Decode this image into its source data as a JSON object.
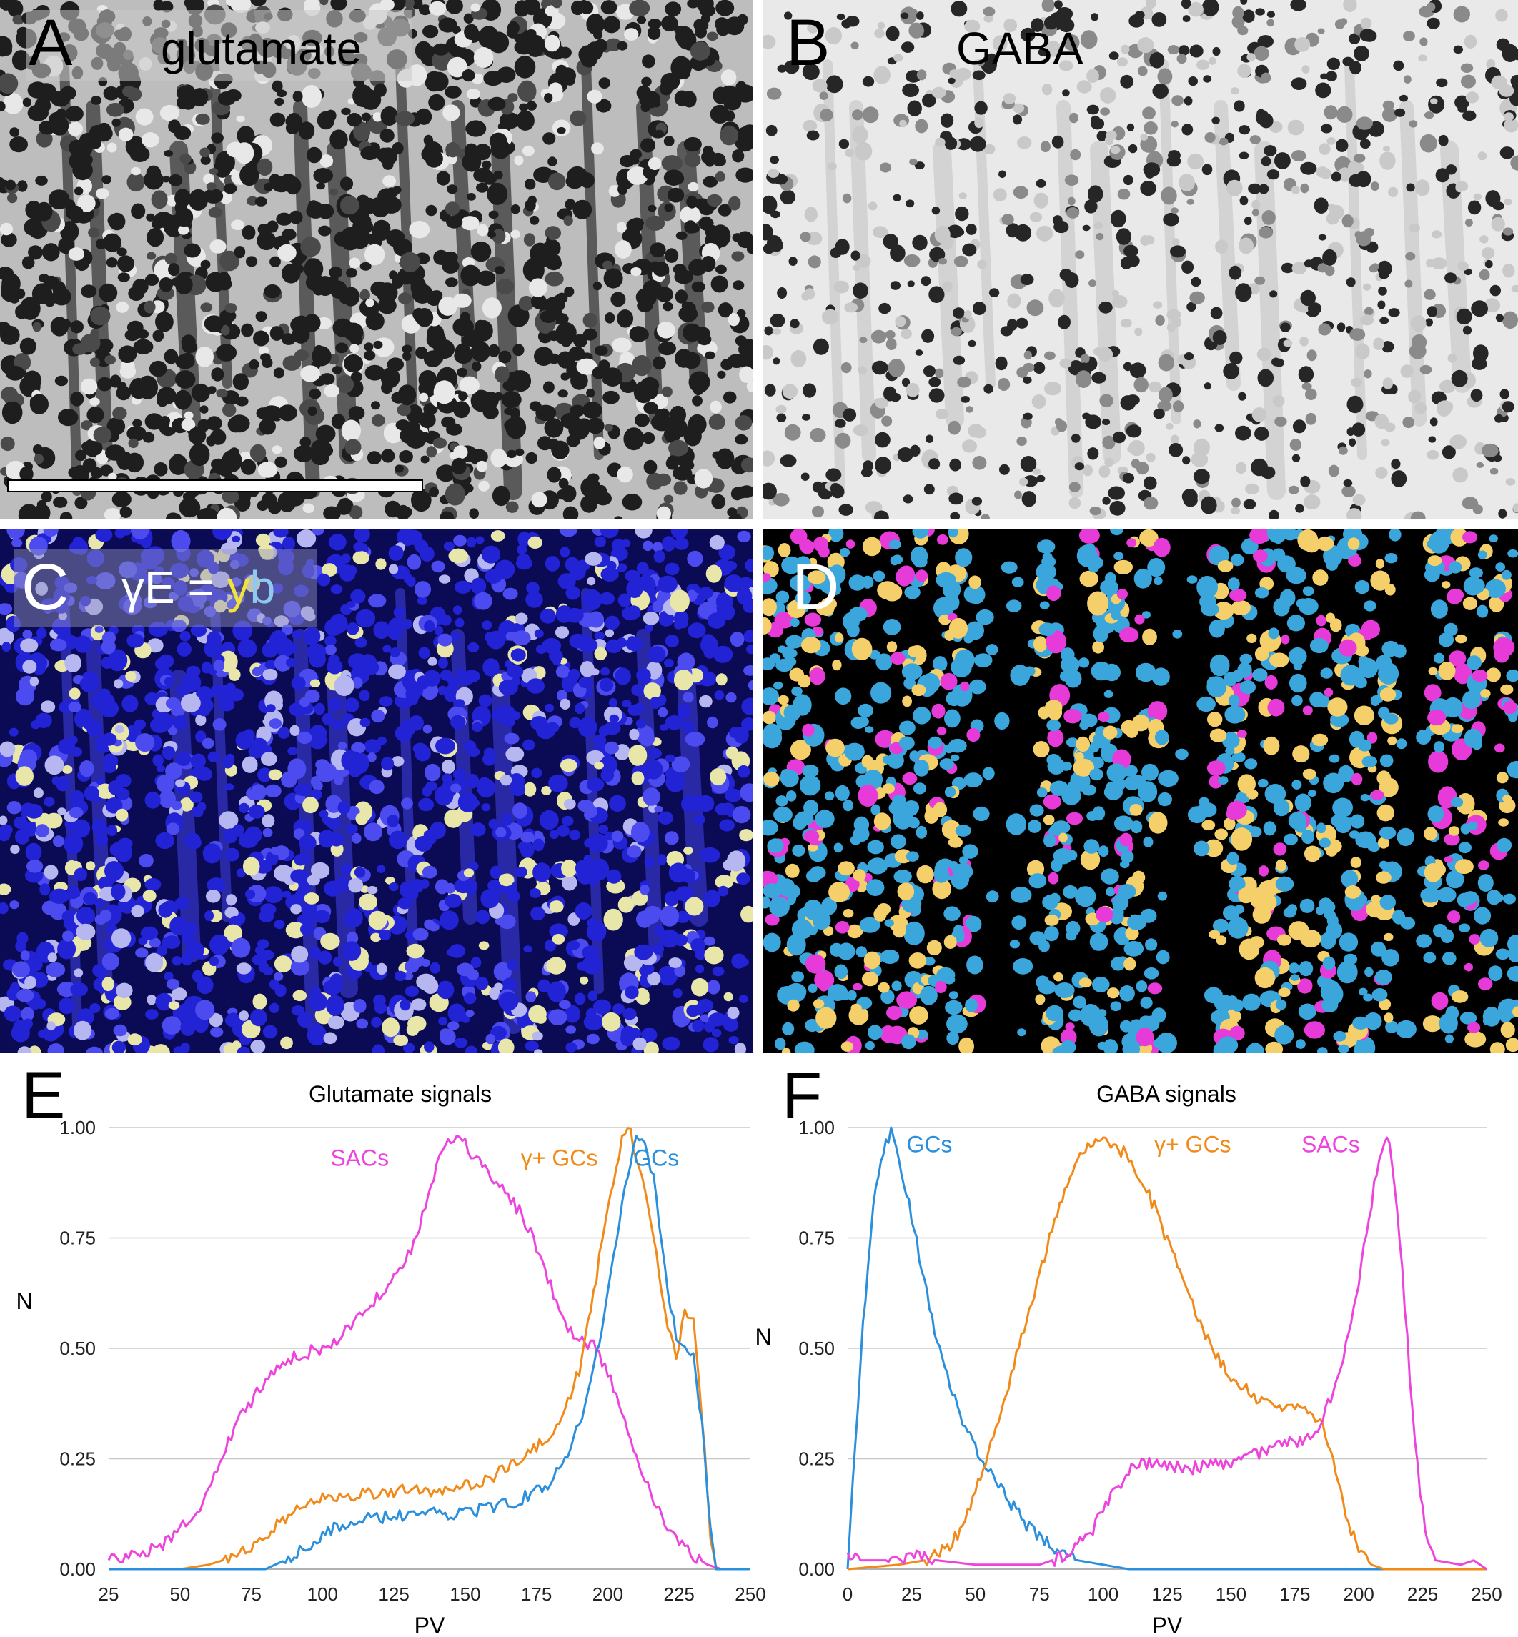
{
  "panels": {
    "a": {
      "letter": "A",
      "title": "glutamate"
    },
    "b": {
      "letter": "B",
      "title": "GABA"
    },
    "c": {
      "letter": "C",
      "title_prefix": "γE = ",
      "title_y": "y",
      "title_b": "b"
    },
    "d": {
      "letter": "D"
    }
  },
  "colors": {
    "sacs": "#ee44dd",
    "gamma_gcs": "#f28a1a",
    "gcs": "#2a90dd",
    "map_gc": "#3aa6dc",
    "map_gamma": "#f5cf6a",
    "map_sac": "#e63bd8",
    "confocal_blue": "#2a2ad8",
    "grid": "#c8c8c8"
  },
  "chart_data": [
    {
      "type": "line",
      "letter": "E",
      "title": "Glutamate signals",
      "xlabel": "PV",
      "ylabel": "N",
      "xlim": [
        25,
        250
      ],
      "ylim": [
        0,
        1
      ],
      "x_ticks": [
        "25",
        "50",
        "75",
        "100",
        "125",
        "150",
        "175",
        "200",
        "225",
        "250"
      ],
      "y_ticks": [
        "0.00",
        "0.25",
        "0.50",
        "0.75",
        "1.00"
      ],
      "grid": "horizontal",
      "series": [
        {
          "name": "SACs",
          "color": "#ee44dd",
          "points": [
            [
              25,
              0.02
            ],
            [
              35,
              0.03
            ],
            [
              45,
              0.06
            ],
            [
              55,
              0.12
            ],
            [
              60,
              0.18
            ],
            [
              65,
              0.26
            ],
            [
              70,
              0.33
            ],
            [
              75,
              0.38
            ],
            [
              80,
              0.43
            ],
            [
              85,
              0.46
            ],
            [
              90,
              0.48
            ],
            [
              95,
              0.49
            ],
            [
              100,
              0.5
            ],
            [
              105,
              0.52
            ],
            [
              110,
              0.55
            ],
            [
              115,
              0.58
            ],
            [
              120,
              0.62
            ],
            [
              125,
              0.66
            ],
            [
              130,
              0.71
            ],
            [
              135,
              0.8
            ],
            [
              140,
              0.92
            ],
            [
              145,
              0.97
            ],
            [
              150,
              0.96
            ],
            [
              155,
              0.92
            ],
            [
              160,
              0.88
            ],
            [
              165,
              0.85
            ],
            [
              170,
              0.8
            ],
            [
              175,
              0.73
            ],
            [
              180,
              0.64
            ],
            [
              185,
              0.55
            ],
            [
              190,
              0.52
            ],
            [
              195,
              0.51
            ],
            [
              200,
              0.45
            ],
            [
              205,
              0.35
            ],
            [
              210,
              0.25
            ],
            [
              215,
              0.17
            ],
            [
              220,
              0.11
            ],
            [
              225,
              0.06
            ],
            [
              230,
              0.03
            ],
            [
              235,
              0.01
            ],
            [
              240,
              0.0
            ],
            [
              250,
              0.0
            ]
          ]
        },
        {
          "name": "γ+ GCs",
          "color": "#f28a1a",
          "points": [
            [
              25,
              0.0
            ],
            [
              50,
              0.0
            ],
            [
              60,
              0.01
            ],
            [
              70,
              0.03
            ],
            [
              80,
              0.08
            ],
            [
              90,
              0.13
            ],
            [
              100,
              0.16
            ],
            [
              110,
              0.17
            ],
            [
              120,
              0.17
            ],
            [
              130,
              0.18
            ],
            [
              140,
              0.18
            ],
            [
              150,
              0.19
            ],
            [
              160,
              0.21
            ],
            [
              170,
              0.25
            ],
            [
              180,
              0.3
            ],
            [
              185,
              0.36
            ],
            [
              190,
              0.45
            ],
            [
              195,
              0.62
            ],
            [
              200,
              0.82
            ],
            [
              205,
              0.98
            ],
            [
              208,
              0.99
            ],
            [
              212,
              0.88
            ],
            [
              217,
              0.72
            ],
            [
              221,
              0.55
            ],
            [
              224,
              0.48
            ],
            [
              227,
              0.58
            ],
            [
              230,
              0.58
            ],
            [
              233,
              0.35
            ],
            [
              236,
              0.08
            ],
            [
              238,
              0.0
            ],
            [
              250,
              0.0
            ]
          ]
        },
        {
          "name": "GCs",
          "color": "#2a90dd",
          "points": [
            [
              25,
              0.0
            ],
            [
              80,
              0.0
            ],
            [
              90,
              0.03
            ],
            [
              100,
              0.08
            ],
            [
              110,
              0.11
            ],
            [
              120,
              0.115
            ],
            [
              130,
              0.12
            ],
            [
              140,
              0.125
            ],
            [
              150,
              0.13
            ],
            [
              160,
              0.14
            ],
            [
              170,
              0.16
            ],
            [
              180,
              0.2
            ],
            [
              185,
              0.25
            ],
            [
              190,
              0.33
            ],
            [
              195,
              0.45
            ],
            [
              200,
              0.62
            ],
            [
              205,
              0.82
            ],
            [
              210,
              0.98
            ],
            [
              213,
              0.97
            ],
            [
              216,
              0.88
            ],
            [
              220,
              0.68
            ],
            [
              224,
              0.52
            ],
            [
              227,
              0.51
            ],
            [
              230,
              0.48
            ],
            [
              233,
              0.33
            ],
            [
              236,
              0.08
            ],
            [
              238,
              0.0
            ],
            [
              250,
              0.0
            ]
          ]
        }
      ],
      "series_labels": [
        "SACs",
        "γ+ GCs",
        "GCs"
      ]
    },
    {
      "type": "line",
      "letter": "F",
      "title": "GABA signals",
      "xlabel": "PV",
      "ylabel": "N",
      "xlim": [
        0,
        250
      ],
      "ylim": [
        0,
        1
      ],
      "x_ticks": [
        "0",
        "25",
        "50",
        "75",
        "100",
        "125",
        "150",
        "175",
        "200",
        "225",
        "250"
      ],
      "y_ticks": [
        "0.00",
        "0.25",
        "0.50",
        "0.75",
        "1.00"
      ],
      "grid": "horizontal",
      "series": [
        {
          "name": "GCs",
          "color": "#2a90dd",
          "points": [
            [
              0,
              0.0
            ],
            [
              2,
              0.2
            ],
            [
              6,
              0.55
            ],
            [
              10,
              0.82
            ],
            [
              14,
              0.95
            ],
            [
              17,
              0.99
            ],
            [
              20,
              0.92
            ],
            [
              25,
              0.8
            ],
            [
              30,
              0.65
            ],
            [
              35,
              0.52
            ],
            [
              40,
              0.42
            ],
            [
              45,
              0.34
            ],
            [
              50,
              0.27
            ],
            [
              60,
              0.18
            ],
            [
              70,
              0.1
            ],
            [
              80,
              0.05
            ],
            [
              90,
              0.02
            ],
            [
              100,
              0.01
            ],
            [
              110,
              0.0
            ],
            [
              250,
              0.0
            ]
          ]
        },
        {
          "name": "γ+ GCs",
          "color": "#f28a1a",
          "points": [
            [
              0,
              0.0
            ],
            [
              20,
              0.01
            ],
            [
              30,
              0.02
            ],
            [
              40,
              0.05
            ],
            [
              45,
              0.1
            ],
            [
              50,
              0.18
            ],
            [
              55,
              0.26
            ],
            [
              60,
              0.36
            ],
            [
              65,
              0.46
            ],
            [
              70,
              0.56
            ],
            [
              75,
              0.66
            ],
            [
              80,
              0.77
            ],
            [
              85,
              0.86
            ],
            [
              90,
              0.93
            ],
            [
              95,
              0.97
            ],
            [
              100,
              0.98
            ],
            [
              105,
              0.96
            ],
            [
              110,
              0.93
            ],
            [
              115,
              0.88
            ],
            [
              120,
              0.82
            ],
            [
              125,
              0.74
            ],
            [
              130,
              0.67
            ],
            [
              135,
              0.6
            ],
            [
              140,
              0.53
            ],
            [
              145,
              0.48
            ],
            [
              150,
              0.44
            ],
            [
              155,
              0.41
            ],
            [
              160,
              0.39
            ],
            [
              165,
              0.38
            ],
            [
              170,
              0.37
            ],
            [
              175,
              0.36
            ],
            [
              180,
              0.35
            ],
            [
              185,
              0.33
            ],
            [
              190,
              0.25
            ],
            [
              195,
              0.12
            ],
            [
              200,
              0.04
            ],
            [
              205,
              0.01
            ],
            [
              210,
              0.0
            ],
            [
              250,
              0.0
            ]
          ]
        },
        {
          "name": "SACs",
          "color": "#ee44dd",
          "points": [
            [
              0,
              0.04
            ],
            [
              5,
              0.02
            ],
            [
              15,
              0.02
            ],
            [
              25,
              0.03
            ],
            [
              35,
              0.02
            ],
            [
              50,
              0.01
            ],
            [
              75,
              0.01
            ],
            [
              85,
              0.03
            ],
            [
              95,
              0.08
            ],
            [
              100,
              0.14
            ],
            [
              105,
              0.18
            ],
            [
              110,
              0.22
            ],
            [
              115,
              0.24
            ],
            [
              125,
              0.23
            ],
            [
              135,
              0.23
            ],
            [
              145,
              0.24
            ],
            [
              155,
              0.25
            ],
            [
              165,
              0.27
            ],
            [
              175,
              0.29
            ],
            [
              180,
              0.3
            ],
            [
              185,
              0.33
            ],
            [
              190,
              0.4
            ],
            [
              195,
              0.5
            ],
            [
              200,
              0.65
            ],
            [
              205,
              0.83
            ],
            [
              208,
              0.93
            ],
            [
              211,
              0.99
            ],
            [
              214,
              0.88
            ],
            [
              218,
              0.6
            ],
            [
              222,
              0.28
            ],
            [
              226,
              0.08
            ],
            [
              230,
              0.02
            ],
            [
              240,
              0.01
            ],
            [
              245,
              0.02
            ],
            [
              250,
              0.0
            ]
          ]
        }
      ],
      "series_labels": [
        "GCs",
        "γ+ GCs",
        "SACs"
      ]
    }
  ]
}
